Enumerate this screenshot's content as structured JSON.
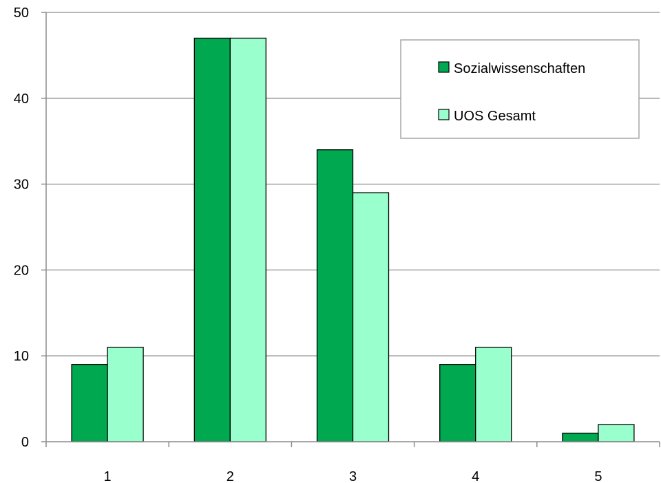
{
  "chart_data": {
    "type": "bar",
    "title": "",
    "xlabel": "",
    "ylabel": "",
    "categories": [
      "1",
      "2",
      "3",
      "4",
      "5"
    ],
    "series": [
      {
        "name": "Sozialwissenschaften",
        "color": "#00a84f",
        "values": [
          9,
          47,
          34,
          9,
          1
        ]
      },
      {
        "name": "UOS Gesamt",
        "color": "#99ffcc",
        "values": [
          11,
          47,
          29,
          11,
          2
        ]
      }
    ],
    "ylim": [
      0,
      50
    ],
    "yticks": [
      "0",
      "10",
      "20",
      "30",
      "40",
      "50"
    ],
    "grid": true,
    "legend_position": "top-right"
  }
}
